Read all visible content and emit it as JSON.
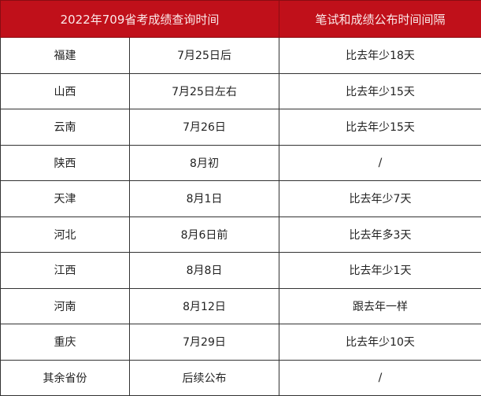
{
  "header": {
    "col1": "2022年709省考成绩查询时间",
    "col2": "笔试和成绩公布时间间隔"
  },
  "header_color": "#c0101a",
  "rows": [
    {
      "province": "福建",
      "date": "7月25日后",
      "interval": "比去年少18天"
    },
    {
      "province": "山西",
      "date": "7月25日左右",
      "interval": "比去年少15天"
    },
    {
      "province": "云南",
      "date": "7月26日",
      "interval": "比去年少15天"
    },
    {
      "province": "陕西",
      "date": "8月初",
      "interval": "/"
    },
    {
      "province": "天津",
      "date": "8月1日",
      "interval": "比去年少7天"
    },
    {
      "province": "河北",
      "date": "8月6日前",
      "interval": "比去年多3天"
    },
    {
      "province": "江西",
      "date": "8月8日",
      "interval": "比去年少1天"
    },
    {
      "province": "河南",
      "date": "8月12日",
      "interval": "跟去年一样"
    },
    {
      "province": "重庆",
      "date": "7月29日",
      "interval": "比去年少10天"
    },
    {
      "province": "其余省份",
      "date": "后续公布",
      "interval": "/"
    }
  ]
}
